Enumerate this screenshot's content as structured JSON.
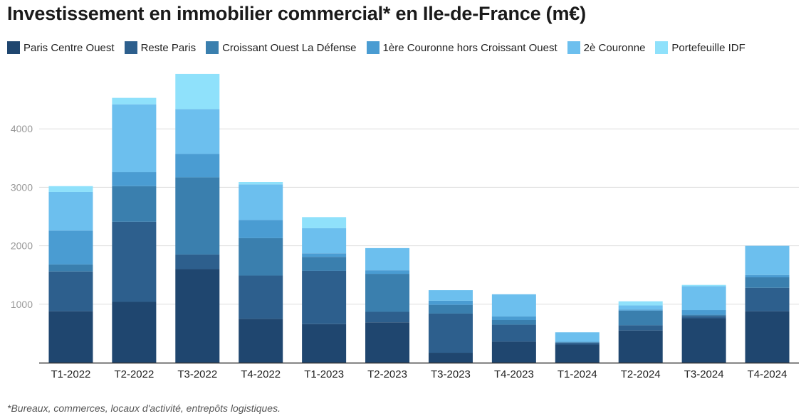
{
  "chart_data": {
    "type": "bar",
    "stacked": true,
    "title": "Investissement en immobilier commercial* en Ile-de-France (m€)",
    "footnote": "*Bureaux, commerces, locaux d'activité, entrepôts logistiques.",
    "categories": [
      "T1-2022",
      "T2-2022",
      "T3-2022",
      "T4-2022",
      "T1-2023",
      "T2-2023",
      "T3-2023",
      "T4-2023",
      "T1-2024",
      "T2-2024",
      "T3-2024",
      "T4-2024"
    ],
    "series": [
      {
        "name": "Paris Centre Ouest",
        "color": "#1f466f",
        "values": [
          880,
          1040,
          1600,
          750,
          660,
          690,
          170,
          360,
          310,
          550,
          760,
          880
        ]
      },
      {
        "name": "Reste Paris",
        "color": "#2d5f8d",
        "values": [
          680,
          1370,
          250,
          740,
          910,
          180,
          670,
          290,
          30,
          90,
          40,
          400
        ]
      },
      {
        "name": "Croissant Ouest La Défense",
        "color": "#3a7fae",
        "values": [
          120,
          610,
          1320,
          640,
          240,
          650,
          150,
          80,
          10,
          250,
          20,
          180
        ]
      },
      {
        "name": "1ère Couronne hors Croissant Ouest",
        "color": "#4a9cd2",
        "values": [
          580,
          240,
          400,
          310,
          60,
          60,
          70,
          60,
          10,
          20,
          80,
          40
        ]
      },
      {
        "name": "2è Couronne",
        "color": "#6cbfee",
        "values": [
          660,
          1160,
          770,
          610,
          430,
          380,
          180,
          380,
          160,
          70,
          410,
          500
        ]
      },
      {
        "name": "Portefeuille IDF",
        "color": "#8fe1fb",
        "values": [
          100,
          110,
          600,
          40,
          190,
          0,
          0,
          0,
          0,
          70,
          20,
          0
        ]
      }
    ],
    "yticks": [
      1000,
      2000,
      3000,
      4000
    ],
    "ylim": [
      0,
      5000
    ],
    "grid": true,
    "legend": "top-left"
  }
}
